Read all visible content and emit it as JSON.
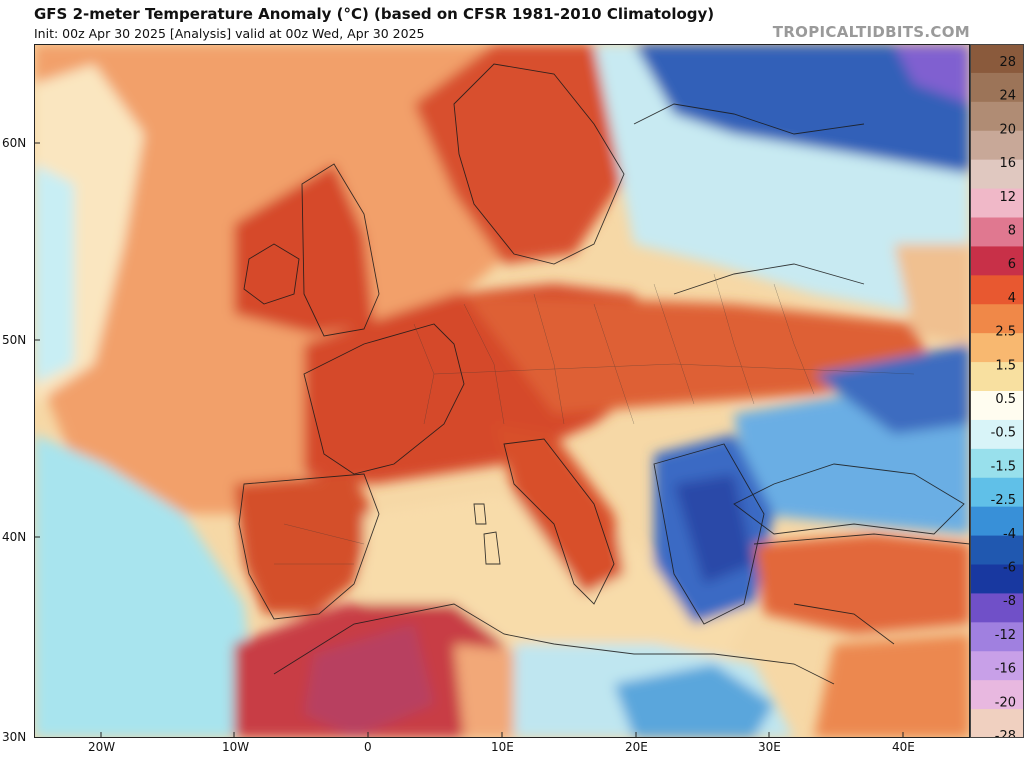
{
  "header": {
    "title": "GFS 2-meter Temperature Anomaly (°C) (based on CFSR 1981-2010 Climatology)",
    "subtitle": "Init: 00z Apr 30 2025   [Analysis]   valid at 00z Wed, Apr 30 2025",
    "brand": "TROPICALTIDBITS.COM"
  },
  "map": {
    "lat_labels": [
      "60N",
      "50N",
      "40N",
      "30N"
    ],
    "lon_labels": [
      "20W",
      "10W",
      "0",
      "10E",
      "20E",
      "30E",
      "40E"
    ]
  },
  "legend": {
    "labels": [
      "28",
      "24",
      "20",
      "16",
      "12",
      "8",
      "6",
      "4",
      "2.5",
      "1.5",
      "0.5",
      "-0.5",
      "-1.5",
      "-2.5",
      "-4",
      "-6",
      "-8",
      "-12",
      "-16",
      "-20",
      "-28"
    ],
    "colors": [
      "#8a5a3c",
      "#9c7458",
      "#b08c74",
      "#c8a898",
      "#e0c8c0",
      "#f0b8c8",
      "#e07890",
      "#c83048",
      "#e85830",
      "#f08848",
      "#f8b870",
      "#f8e0a0",
      "#fffdf0",
      "#d8f4f8",
      "#98e0ec",
      "#60c0e8",
      "#3890d8",
      "#2058b0",
      "#1838a0",
      "#7050c8",
      "#a080e0",
      "#c8a0e8",
      "#e8b8e0",
      "#f0d0c0"
    ]
  }
}
